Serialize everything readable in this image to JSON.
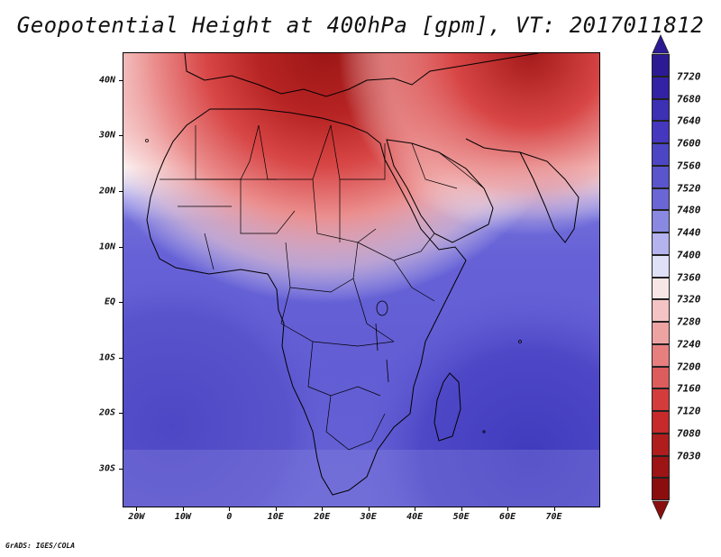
{
  "title": "Geopotential Height at 400hPa [gpm], VT: 2017011812",
  "footer": "GrADS: IGES/COLA",
  "map": {
    "lon_range": [
      -23,
      80
    ],
    "lat_range": [
      -37,
      45
    ],
    "lat_labels": [
      "40N",
      "30N",
      "20N",
      "10N",
      "EQ",
      "10S",
      "20S",
      "30S"
    ],
    "lat_values": [
      40,
      30,
      20,
      10,
      0,
      -10,
      -20,
      -30
    ],
    "lon_labels": [
      "20W",
      "10W",
      "0",
      "10E",
      "20E",
      "30E",
      "40E",
      "50E",
      "60E",
      "70E"
    ],
    "lon_values": [
      -20,
      -10,
      0,
      10,
      20,
      30,
      40,
      50,
      60,
      70
    ]
  },
  "colorbar": {
    "labels": [
      "7720",
      "7680",
      "7640",
      "7600",
      "7560",
      "7520",
      "7480",
      "7440",
      "7400",
      "7360",
      "7320",
      "7280",
      "7240",
      "7200",
      "7160",
      "7120",
      "7080",
      "7030"
    ],
    "colors": [
      "#2b1a94",
      "#3322a3",
      "#3c30b4",
      "#4538bf",
      "#4d46c4",
      "#5a55cc",
      "#6a66d6",
      "#8a89e2",
      "#b4b3ee",
      "#e0e0f8",
      "#f8e6e6",
      "#f4c4c4",
      "#eea3a3",
      "#e77f7f",
      "#dd5c5c",
      "#d43c3c",
      "#c62a2a",
      "#b01d1d",
      "#9c1414",
      "#8b0e0e"
    ],
    "top_arrow_color": "#2b1a94",
    "bottom_arrow_color": "#8b0e0e"
  }
}
